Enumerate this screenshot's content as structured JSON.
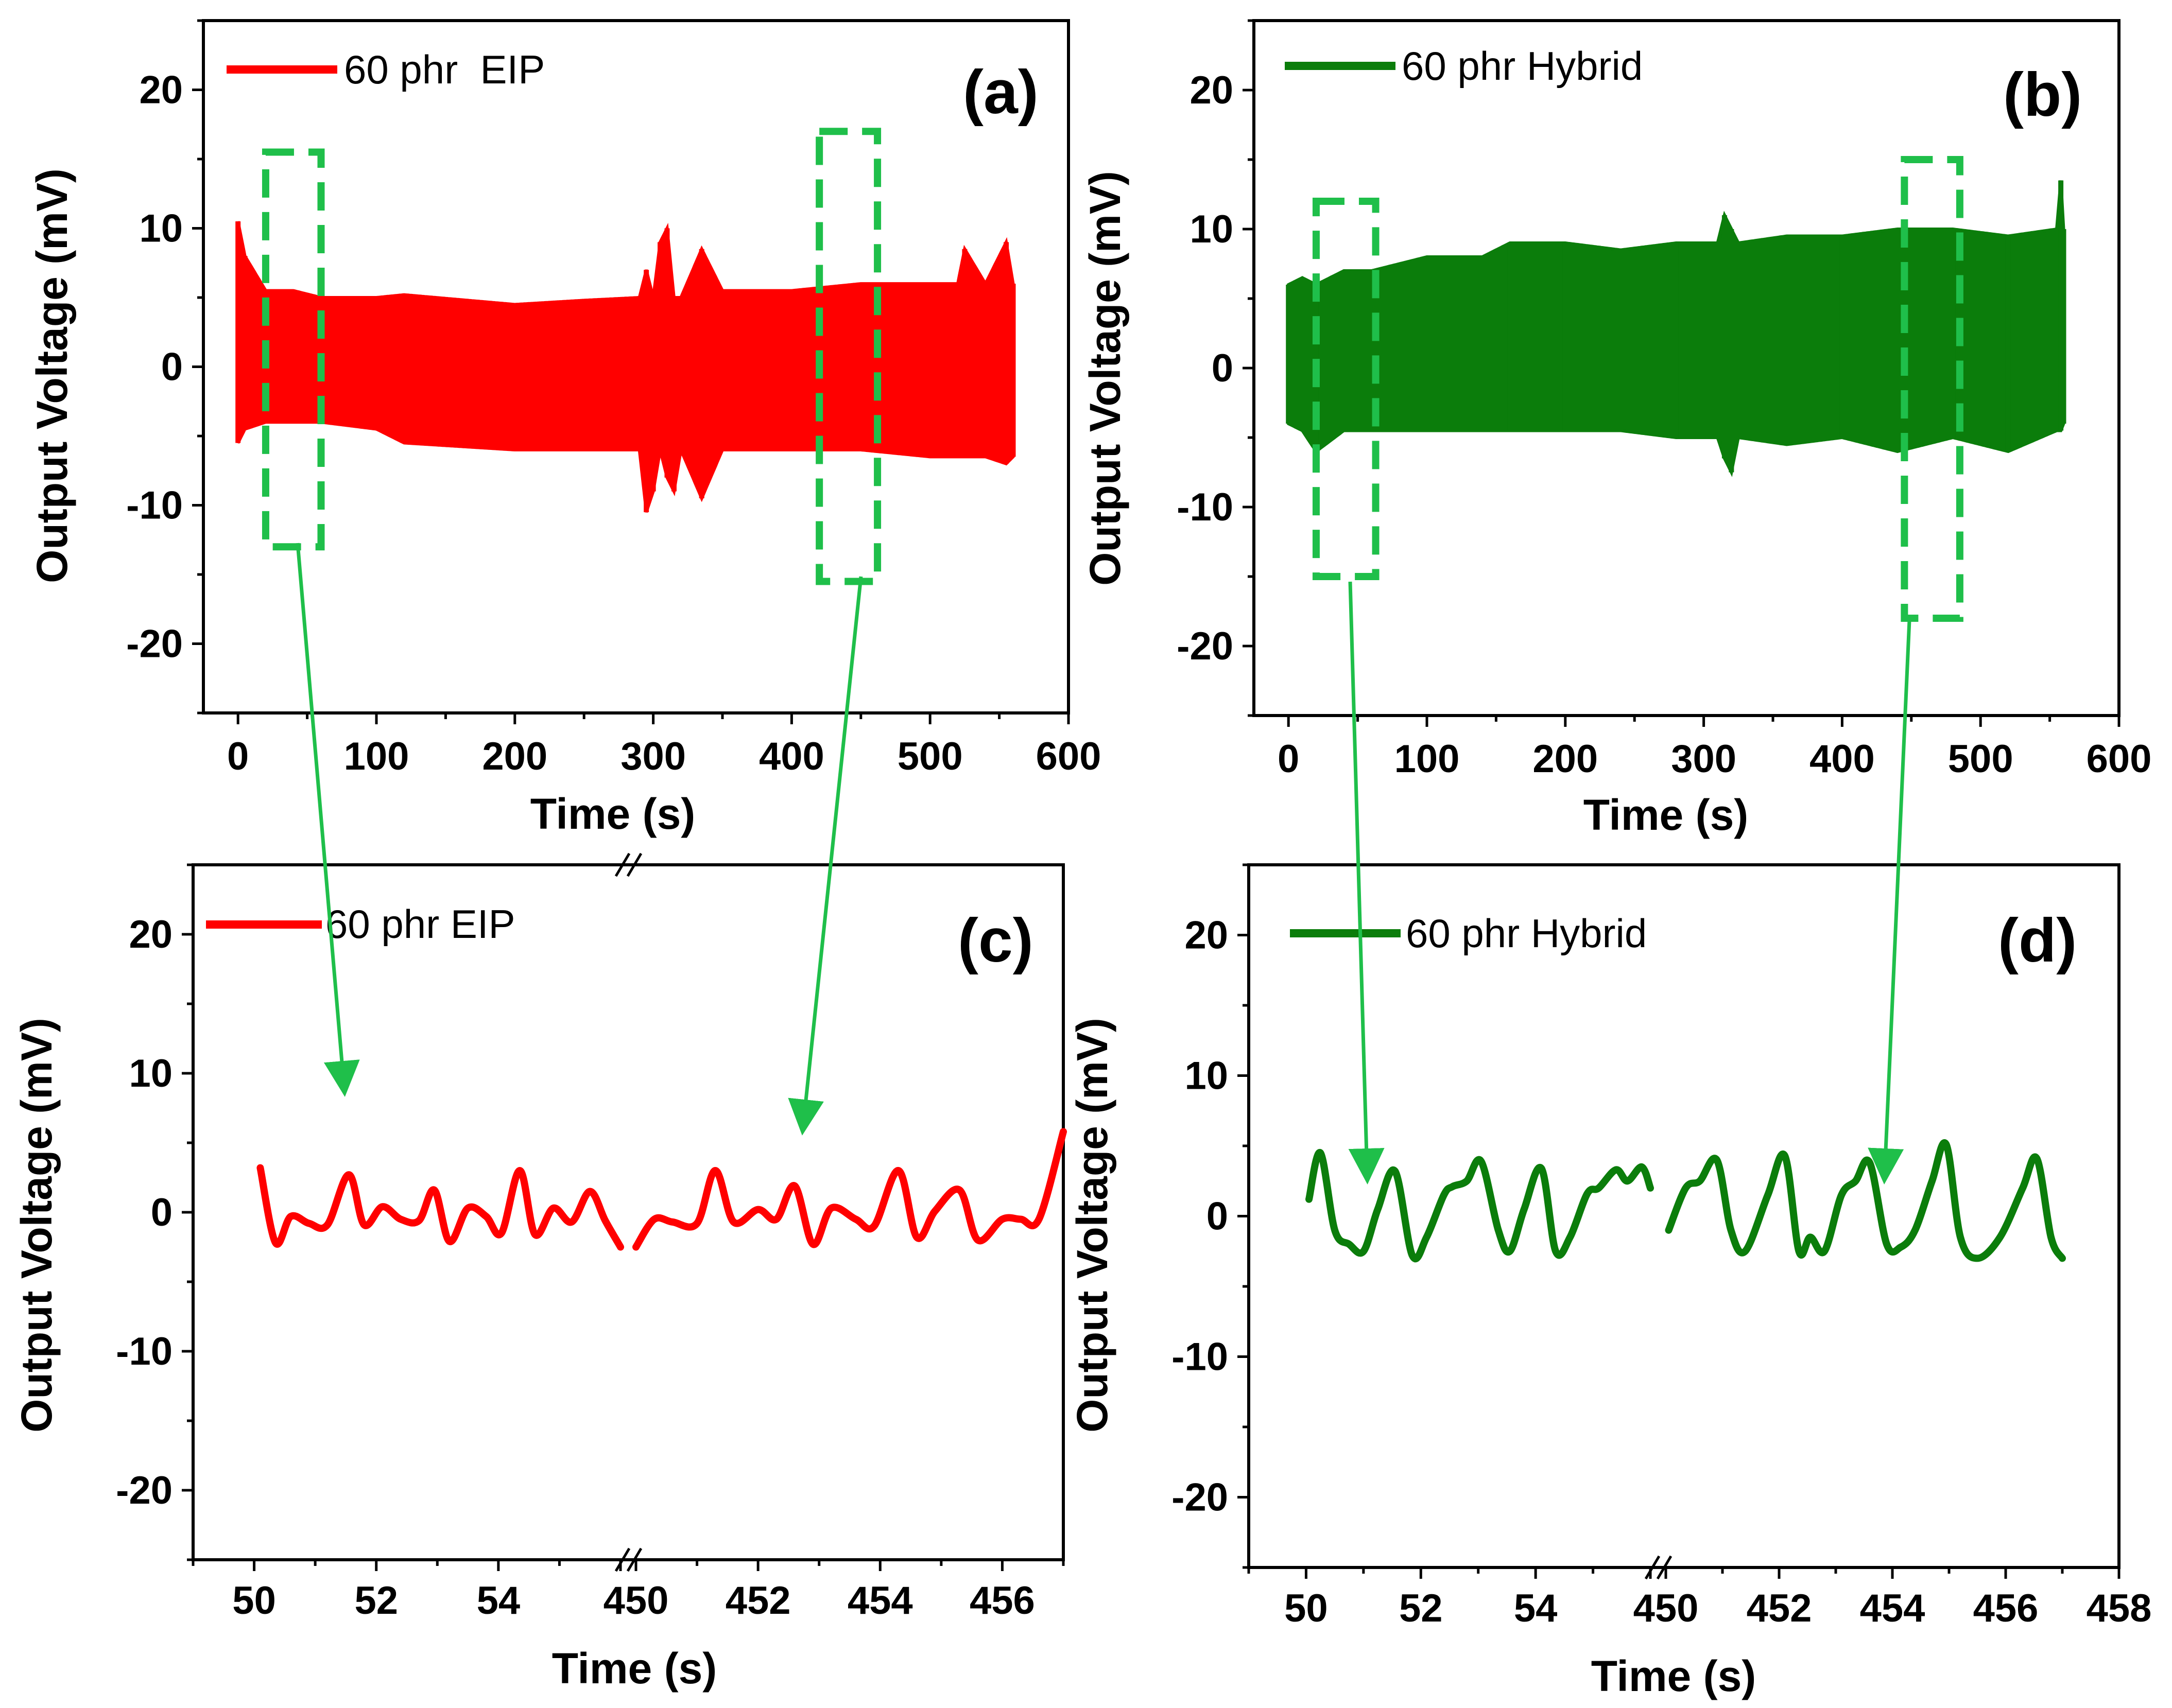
{
  "chart_data": [
    {
      "panel_label": "(a)",
      "type": "line",
      "legend": "60 phr  EIP",
      "color": "#ff0000",
      "xlabel": "Time (s)",
      "ylabel": "Output Voltage (mV)",
      "xlim": [
        -25,
        600
      ],
      "ylim": [
        -25,
        25
      ],
      "xticks": [
        "0",
        "100",
        "200",
        "300",
        "400",
        "500",
        "600"
      ],
      "yticks": [
        "-20",
        "-10",
        "0",
        "10",
        "20"
      ],
      "envelope": {
        "t": [
          0,
          5,
          20,
          40,
          60,
          100,
          120,
          200,
          250,
          290,
          295,
          300,
          305,
          310,
          315,
          320,
          335,
          350,
          400,
          450,
          500,
          520,
          525,
          540,
          555,
          560
        ],
        "upper": [
          10.5,
          8,
          5.5,
          5.5,
          5,
          5,
          5.2,
          4.5,
          4.8,
          5,
          7,
          5,
          9,
          10,
          5,
          5,
          8.5,
          5.5,
          5.5,
          6,
          6,
          6,
          8.5,
          6,
          9,
          6
        ],
        "lower": [
          -5.5,
          -4.5,
          -4,
          -4,
          -4,
          -4.5,
          -5.5,
          -6,
          -6,
          -6,
          -10.5,
          -9,
          -6,
          -8,
          -9,
          -6,
          -9.5,
          -6,
          -6,
          -6,
          -6.5,
          -6.5,
          -6.5,
          -6.5,
          -7,
          -6.5
        ]
      },
      "zoom_boxes": [
        [
          20,
          60,
          -13,
          15.5
        ],
        [
          420,
          462,
          -15.5,
          17
        ]
      ]
    },
    {
      "panel_label": "(b)",
      "type": "line",
      "legend": "60 phr Hybrid",
      "color": "#0b7d0b",
      "xlabel": "Time (s)",
      "ylabel": "Output Voltage (mV)",
      "xlim": [
        -25,
        600
      ],
      "ylim": [
        -25,
        25
      ],
      "xticks": [
        "0",
        "100",
        "200",
        "300",
        "400",
        "500",
        "600"
      ],
      "yticks": [
        "-20",
        "-10",
        "0",
        "10",
        "20"
      ],
      "envelope": {
        "t": [
          0,
          10,
          20,
          40,
          60,
          100,
          140,
          160,
          200,
          240,
          280,
          310,
          315,
          320,
          325,
          360,
          400,
          440,
          480,
          520,
          555,
          558,
          560
        ],
        "upper": [
          6,
          6.5,
          6,
          7,
          7,
          8,
          8,
          9,
          9,
          8.5,
          9,
          9,
          11,
          10,
          9,
          9.5,
          9.5,
          10,
          10,
          9.5,
          10,
          13.5,
          10
        ],
        "lower": [
          -4,
          -4.5,
          -6,
          -4.5,
          -4.5,
          -4.5,
          -4.5,
          -4.5,
          -4.5,
          -4.5,
          -5,
          -5,
          -6.5,
          -7.5,
          -5,
          -5.5,
          -5,
          -6,
          -5,
          -6,
          -4.5,
          -4.5,
          -4
        ]
      },
      "zoom_boxes": [
        [
          20,
          63,
          -15,
          12
        ],
        [
          445,
          485,
          -18,
          15
        ]
      ]
    },
    {
      "panel_label": "(c)",
      "type": "line",
      "legend": "60 phr EIP",
      "color": "#ff0000",
      "xlabel": "Time (s)",
      "ylabel": "Output Voltage (mV)",
      "ylim": [
        -25,
        25
      ],
      "segments": [
        {
          "xlim": [
            49,
            56
          ],
          "x": [
            50.1,
            50.35,
            50.6,
            50.9,
            51.2,
            51.55,
            51.8,
            52.1,
            52.4,
            52.7,
            52.95,
            53.2,
            53.5,
            53.8,
            54.05,
            54.35,
            54.6,
            54.9,
            55.2,
            55.5,
            55.75,
            56.0
          ],
          "y": [
            3.2,
            -2.2,
            -0.3,
            -0.8,
            -0.9,
            2.7,
            -0.9,
            0.4,
            -0.5,
            -0.6,
            1.6,
            -2.1,
            0.3,
            -0.3,
            -1.5,
            3.0,
            -1.6,
            0.3,
            -0.7,
            1.5,
            -0.6,
            -2.5
          ]
        },
        {
          "xlim": [
            450,
            457
          ],
          "x": [
            450.0,
            450.3,
            450.6,
            451.0,
            451.3,
            451.6,
            452.0,
            452.3,
            452.6,
            452.9,
            453.2,
            453.6,
            453.9,
            454.3,
            454.6,
            454.9,
            455.3,
            455.6,
            456.0,
            456.3,
            456.6,
            457.0
          ],
          "y": [
            -2.5,
            -0.5,
            -0.7,
            -0.8,
            3.0,
            -0.7,
            0.2,
            -0.5,
            1.9,
            -2.3,
            0.3,
            -0.5,
            -1.0,
            3.0,
            -1.8,
            0.1,
            1.6,
            -2.0,
            -0.5,
            -0.5,
            -0.5,
            5.8
          ]
        }
      ],
      "xticks": [
        "50",
        "52",
        "54",
        "450",
        "452",
        "454",
        "456"
      ]
    },
    {
      "panel_label": "(d)",
      "type": "line",
      "legend": "60 phr Hybrid",
      "color": "#0b7d0b",
      "xlabel": "Time (s)",
      "ylabel": "Output Voltage (mV)",
      "ylim": [
        -25,
        25
      ],
      "segments": [
        {
          "xlim": [
            49,
            56
          ],
          "x": [
            50.05,
            50.25,
            50.5,
            50.75,
            51.0,
            51.25,
            51.55,
            51.85,
            52.1,
            52.4,
            52.55,
            52.8,
            53.05,
            53.35,
            53.55,
            53.8,
            54.1,
            54.35,
            54.6,
            54.9,
            55.1,
            55.4,
            55.6,
            55.85,
            56.0
          ],
          "y": [
            1.2,
            4.5,
            -1.0,
            -2.0,
            -2.5,
            0.5,
            3.2,
            -2.8,
            -1.5,
            1.5,
            2.1,
            2.5,
            3.9,
            -1.0,
            -2.5,
            0.5,
            3.4,
            -2.5,
            -1.5,
            1.6,
            2.0,
            3.3,
            2.5,
            3.5,
            2.0
          ]
        },
        {
          "xlim": [
            450,
            458
          ],
          "x": [
            450.05,
            450.35,
            450.6,
            450.9,
            451.15,
            451.4,
            451.8,
            452.1,
            452.35,
            452.55,
            452.8,
            453.1,
            453.35,
            453.6,
            453.9,
            454.15,
            454.4,
            454.7,
            454.95,
            455.2,
            455.5,
            455.9,
            456.3,
            456.55,
            456.8,
            457.0
          ],
          "y": [
            -1.0,
            2.0,
            2.5,
            4.0,
            -1.0,
            -2.5,
            1.5,
            4.3,
            -2.5,
            -1.5,
            -2.5,
            1.5,
            2.5,
            3.8,
            -2.0,
            -2.2,
            -1.0,
            2.5,
            5.1,
            -1.5,
            -3.0,
            -1.5,
            2.0,
            4.1,
            -1.5,
            -3.0
          ]
        }
      ],
      "xticks": [
        "50",
        "52",
        "54",
        "450",
        "452",
        "454",
        "456",
        "458"
      ]
    }
  ]
}
